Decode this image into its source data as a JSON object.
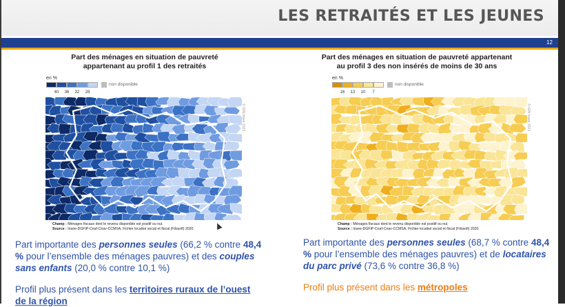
{
  "header": {
    "title": "LES RETRAITÉS ET LES JEUNES",
    "page_number": "12"
  },
  "colors": {
    "bar": "#1f3f8f",
    "accent": "#e9a900",
    "left_text": "#2f53a8",
    "right_profile": "#ee7d11"
  },
  "left": {
    "title_line1": "Part des ménages en situation de pauvreté",
    "title_line2": "appartenant au profil 1 des retraités",
    "legend": {
      "unit": "en %",
      "ticks": [
        "40",
        "36",
        "32",
        "28"
      ],
      "na_label": "non disponible",
      "colors": [
        "#0d2a66",
        "#1f4fa0",
        "#3c72c4",
        "#6f9be0",
        "#c3d6f4"
      ]
    },
    "copyright": "© IGN Insee 2023",
    "source": {
      "champ_label": "Champ :",
      "champ_text": "Ménages fiscaux dont le revenu disponible est positif ou nul.",
      "source_label": "Source :",
      "source_text": "Insee-DGFiP-Cnaf-Cnav-CCMSA, Fichier localisé social et fiscal (Filosofi) 2020."
    },
    "para": {
      "t1": "Part importante des ",
      "t2": "personnes seules",
      "t3": " (66,2 % contre ",
      "t4": "48,4 %",
      "t5": " pour l’ensemble des ménages pauvres) et des ",
      "t6": "couples sans enfants",
      "t7": " (20,0 % contre 10,1 %)"
    },
    "profile": {
      "t1": "Profil plus présent dans les ",
      "link": "territoires ruraux de l’ouest de la région"
    }
  },
  "right": {
    "title_line1": "Part des ménages en situation de pauvreté appartenant",
    "title_line2": "au profil 3 des non insérés de moins de 30 ans",
    "legend": {
      "unit": "en %",
      "ticks": [
        "16",
        "13",
        "10",
        "7"
      ],
      "na_label": "non disponible",
      "colors": [
        "#d98e00",
        "#efae1e",
        "#f6cd52",
        "#fae596",
        "#fdf3cf"
      ]
    },
    "copyright": "© IGN Insee 2023",
    "source": {
      "champ_label": "Champ :",
      "champ_text": "Ménages fiscaux dont le revenu disponible est positif ou nul.",
      "source_label": "Source :",
      "source_text": "Insee-DGFiP-Cnaf-Cnav-CCMSA, Fichier localisé social et fiscal (Filosofi) 2020."
    },
    "para": {
      "t1": "Part importante des ",
      "t2": "personnes seules",
      "t3": " (68,7 % contre ",
      "t4": "48,4 %",
      "t5": " pour l’ensemble des ménages pauvres) et de ",
      "t6": "locataires du parc privé",
      "t7": " (73,6 % contre 36,8 %)"
    },
    "profile": {
      "t1": "Profil plus présent dans les ",
      "link": "métropoles"
    }
  }
}
